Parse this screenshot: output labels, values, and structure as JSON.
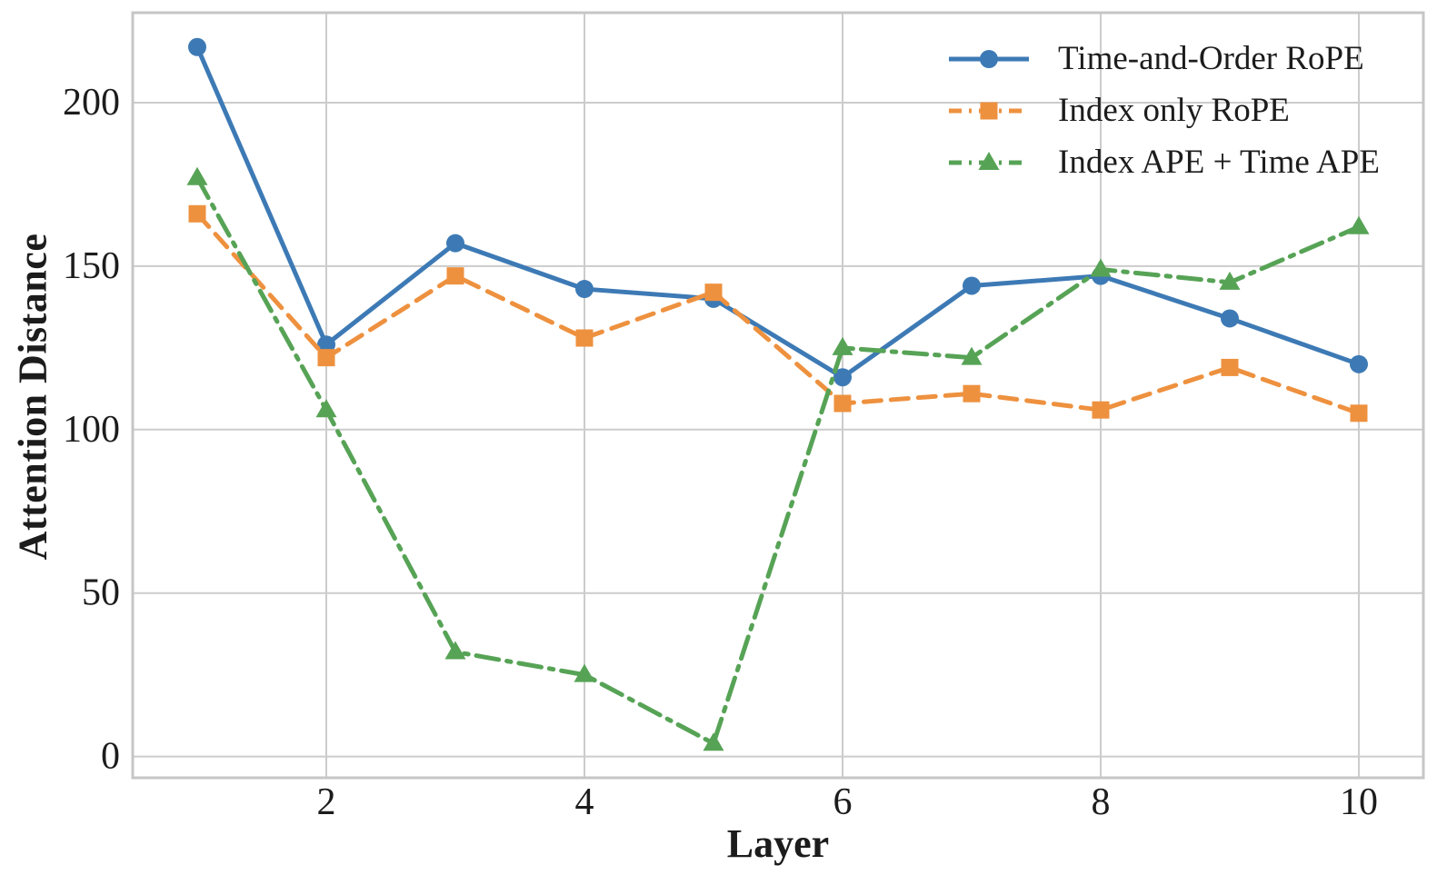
{
  "chart_data": {
    "type": "line",
    "title": "",
    "xlabel": "Layer",
    "ylabel": "Attention Distance",
    "x": [
      1,
      2,
      3,
      4,
      5,
      6,
      7,
      8,
      9,
      10
    ],
    "series": [
      {
        "name": "Time-and-Order RoPE",
        "color": "#3d7ab5",
        "marker": "circle",
        "line_style": "solid",
        "values": [
          217,
          126,
          157,
          143,
          140,
          116,
          144,
          147,
          134,
          120
        ]
      },
      {
        "name": "Index only RoPE",
        "color": "#ee913f",
        "marker": "square",
        "line_style": "dashed",
        "values": [
          166,
          122,
          147,
          128,
          142,
          108,
          111,
          106,
          119,
          105
        ]
      },
      {
        "name": "Index APE + Time APE",
        "color": "#57a356",
        "marker": "triangle",
        "line_style": "dashdot",
        "values": [
          177,
          106,
          32,
          25,
          4,
          125,
          122,
          149,
          145,
          162
        ]
      }
    ],
    "xticks": [
      "2",
      "4",
      "6",
      "8",
      "10"
    ],
    "xtick_values": [
      2,
      4,
      6,
      8,
      10
    ],
    "yticks": [
      "0",
      "50",
      "100",
      "150",
      "200"
    ],
    "ytick_values": [
      0,
      50,
      100,
      150,
      200
    ],
    "xlim": [
      0.5,
      10.5
    ],
    "ylim": [
      -6.5,
      227.5
    ],
    "grid": true,
    "legend_position": "upper-right",
    "colors": {
      "grid": "#cccccc",
      "axis_border": "#c6c6c6",
      "text": "#1c1c1c",
      "background": "#ffffff"
    }
  }
}
